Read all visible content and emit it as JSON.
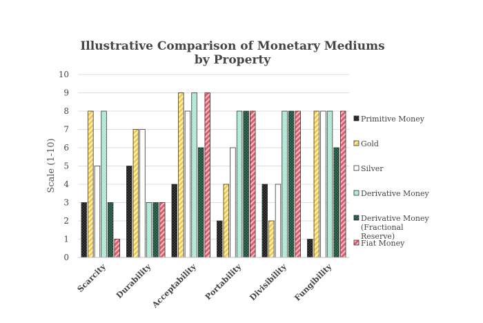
{
  "chart_data": {
    "type": "bar",
    "title_lines": [
      "Illustrative Comparison of Monetary Mediums",
      "by Property"
    ],
    "ylabel": "Scale (1-10)",
    "xlabel": "",
    "ylim": [
      0,
      10
    ],
    "yticks": [
      "0",
      "1",
      "2",
      "3",
      "4",
      "5",
      "6",
      "7",
      "8",
      "9",
      "10"
    ],
    "grid": true,
    "legend_position": "right",
    "categories": [
      "Scarcity",
      "Durability",
      "Acceptability",
      "Portability",
      "Divisibility",
      "Fungibility"
    ],
    "series": [
      {
        "name": "Primitive Money",
        "legend_lines": [
          "Primitive Money"
        ],
        "color": "#1a1a1a",
        "pattern": "dots-dark",
        "values": [
          3,
          5,
          4,
          2,
          4,
          1
        ]
      },
      {
        "name": "Gold",
        "legend_lines": [
          "Gold"
        ],
        "color": "#f2c94c",
        "pattern": "stripes-gold",
        "values": [
          8,
          7,
          9,
          4,
          2,
          8
        ]
      },
      {
        "name": "Silver",
        "legend_lines": [
          "Silver"
        ],
        "color": "#ffffff",
        "pattern": "plain-white",
        "values": [
          5,
          7,
          8,
          6,
          4,
          8
        ]
      },
      {
        "name": "Derivative Money",
        "legend_lines": [
          "Derivative Money"
        ],
        "color": "#a8e6cf",
        "pattern": "dots-mint",
        "values": [
          8,
          3,
          9,
          8,
          8,
          8
        ]
      },
      {
        "name": "Derivative Money (Fractional Reserve)",
        "legend_lines": [
          "Derivative Money",
          "(Fractional",
          "Reserve)"
        ],
        "color": "#1f4d3a",
        "pattern": "dots-green",
        "values": [
          3,
          3,
          6,
          8,
          8,
          6
        ]
      },
      {
        "name": "Fiat Money",
        "legend_lines": [
          "Fiat Money"
        ],
        "color": "#e05a6a",
        "pattern": "stripes-red",
        "values": [
          1,
          3,
          9,
          8,
          8,
          8
        ]
      }
    ]
  }
}
